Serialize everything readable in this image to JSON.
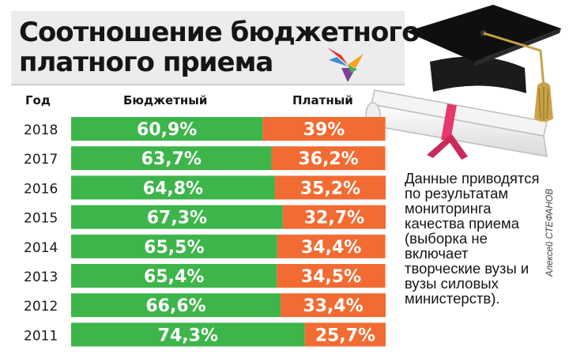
{
  "title": "Соотношение бюджетного и платного приема",
  "headers": {
    "year": "Год",
    "budget": "Бюджетный",
    "paid": "Платный"
  },
  "note": "Данные приводятся по результатам мониторинга качества приема (выборка не включает творческие вузы и вузы силовых министерств).",
  "credit": "Алексей СТЕФАНОВ",
  "colors": {
    "budget": "#3db54a",
    "paid": "#f26b32",
    "title_bg": "#ececec"
  },
  "icons": [
    "bird-logo-icon",
    "graduation-cap-icon",
    "diploma-scroll-icon"
  ],
  "chart_data": {
    "type": "bar",
    "orientation": "horizontal",
    "stacked": true,
    "categories": [
      "2018",
      "2017",
      "2016",
      "2015",
      "2014",
      "2013",
      "2012",
      "2011"
    ],
    "series": [
      {
        "name": "Бюджетный",
        "values": [
          60.9,
          63.7,
          64.8,
          67.3,
          65.5,
          65.4,
          66.6,
          74.3
        ],
        "labels": [
          "60,9%",
          "63,7%",
          "64,8%",
          "67,3%",
          "65,5%",
          "65,4%",
          "66,6%",
          "74,3%"
        ]
      },
      {
        "name": "Платный",
        "values": [
          39,
          36.2,
          35.2,
          32.7,
          34.4,
          34.5,
          33.4,
          25.7
        ],
        "labels": [
          "39%",
          "36,2%",
          "35,2%",
          "32,7%",
          "34,4%",
          "34,5%",
          "33,4%",
          "25,7%"
        ]
      }
    ],
    "xlim": [
      0,
      100
    ]
  }
}
